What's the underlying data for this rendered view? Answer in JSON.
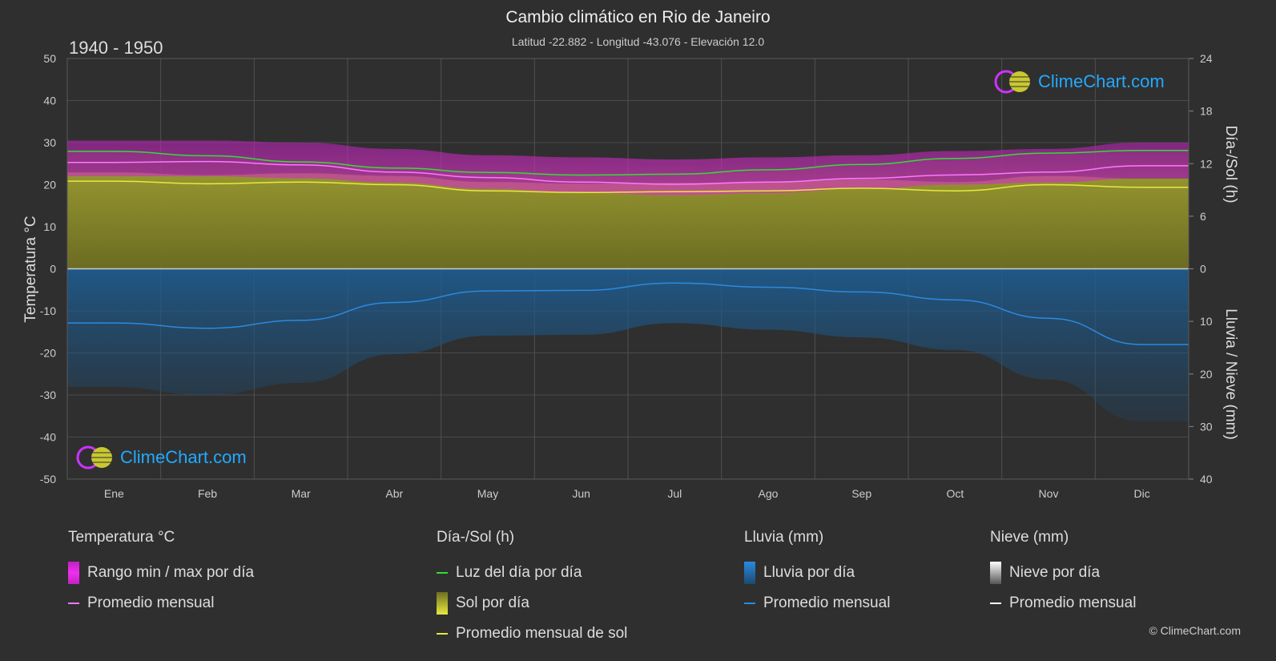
{
  "title": "Cambio climático en Rio de Janeiro",
  "subtitle": "Latitud -22.882 - Longitud -43.076 - Elevación 12.0",
  "period": "1940 - 1950",
  "brand": "ClimeChart.com",
  "copyright": "© ClimeChart.com",
  "colors": {
    "background": "#2f2f2f",
    "temp_range": "#d020d0",
    "temp_avg": "#ff77ff",
    "daylight": "#33dd33",
    "sun_fill": "#8a8a2a",
    "sun_avg": "#e8e840",
    "rain": "#1a6ab0",
    "rain_avg": "#2a8ae0",
    "snow_avg": "#ffffff"
  },
  "legend": {
    "temperature": {
      "title": "Temperatura °C",
      "range": "Rango min / max por día",
      "avg": "Promedio mensual"
    },
    "sun": {
      "title": "Día-/Sol (h)",
      "daylight": "Luz del día por día",
      "sun": "Sol por día",
      "sun_avg": "Promedio mensual de sol"
    },
    "rain": {
      "title": "Lluvia (mm)",
      "rain": "Lluvia por día",
      "avg": "Promedio mensual"
    },
    "snow": {
      "title": "Nieve (mm)",
      "snow": "Nieve por día",
      "avg": "Promedio mensual"
    }
  },
  "chart_data": {
    "type": "area",
    "categories": [
      "Ene",
      "Feb",
      "Mar",
      "Abr",
      "May",
      "Jun",
      "Jul",
      "Ago",
      "Sep",
      "Oct",
      "Nov",
      "Dic"
    ],
    "left_axis": {
      "label": "Temperatura °C",
      "ticks": [
        50,
        40,
        30,
        20,
        10,
        0,
        -10,
        -20,
        -30,
        -40,
        -50
      ],
      "ylim": [
        -50,
        50
      ]
    },
    "right_axis_top": {
      "label": "Día-/Sol (h)",
      "ticks": [
        24,
        18,
        12,
        6,
        0
      ],
      "ylim": [
        0,
        24
      ]
    },
    "right_axis_bottom": {
      "label": "Lluvia / Nieve (mm)",
      "ticks": [
        0,
        10,
        20,
        30,
        40
      ],
      "ylim": [
        0,
        40
      ]
    },
    "grid": true,
    "series": [
      {
        "name": "Rango min / max por día (max)",
        "values": [
          30.5,
          30.5,
          30.0,
          28.5,
          27.0,
          26.5,
          26.0,
          26.5,
          27.0,
          28.0,
          28.5,
          30.0
        ]
      },
      {
        "name": "Rango min / max por día (min)",
        "values": [
          22.0,
          22.0,
          21.5,
          20.5,
          19.0,
          18.0,
          17.5,
          18.0,
          19.0,
          20.0,
          20.5,
          21.5
        ]
      },
      {
        "name": "Promedio mensual",
        "values": [
          25.3,
          25.5,
          24.7,
          23.0,
          21.7,
          20.6,
          20.1,
          20.6,
          21.5,
          22.3,
          23.0,
          24.5
        ]
      },
      {
        "name": "Luz del día por día",
        "values": [
          13.4,
          12.9,
          12.2,
          11.5,
          11.0,
          10.7,
          10.8,
          11.3,
          11.9,
          12.6,
          13.2,
          13.5
        ]
      },
      {
        "name": "Promedio mensual de sol",
        "values": [
          10.0,
          9.7,
          9.9,
          9.6,
          8.9,
          8.7,
          8.8,
          8.9,
          9.2,
          8.9,
          9.6,
          9.3
        ]
      },
      {
        "name": "Lluvia promedio mensual (mm)",
        "values": [
          10.3,
          11.3,
          9.8,
          6.4,
          4.2,
          4.1,
          2.7,
          3.5,
          4.4,
          5.9,
          9.4,
          14.4
        ]
      },
      {
        "name": "Nieve promedio mensual (mm)",
        "values": [
          0,
          0,
          0,
          0,
          0,
          0,
          0,
          0,
          0,
          0,
          0,
          0
        ]
      }
    ]
  }
}
